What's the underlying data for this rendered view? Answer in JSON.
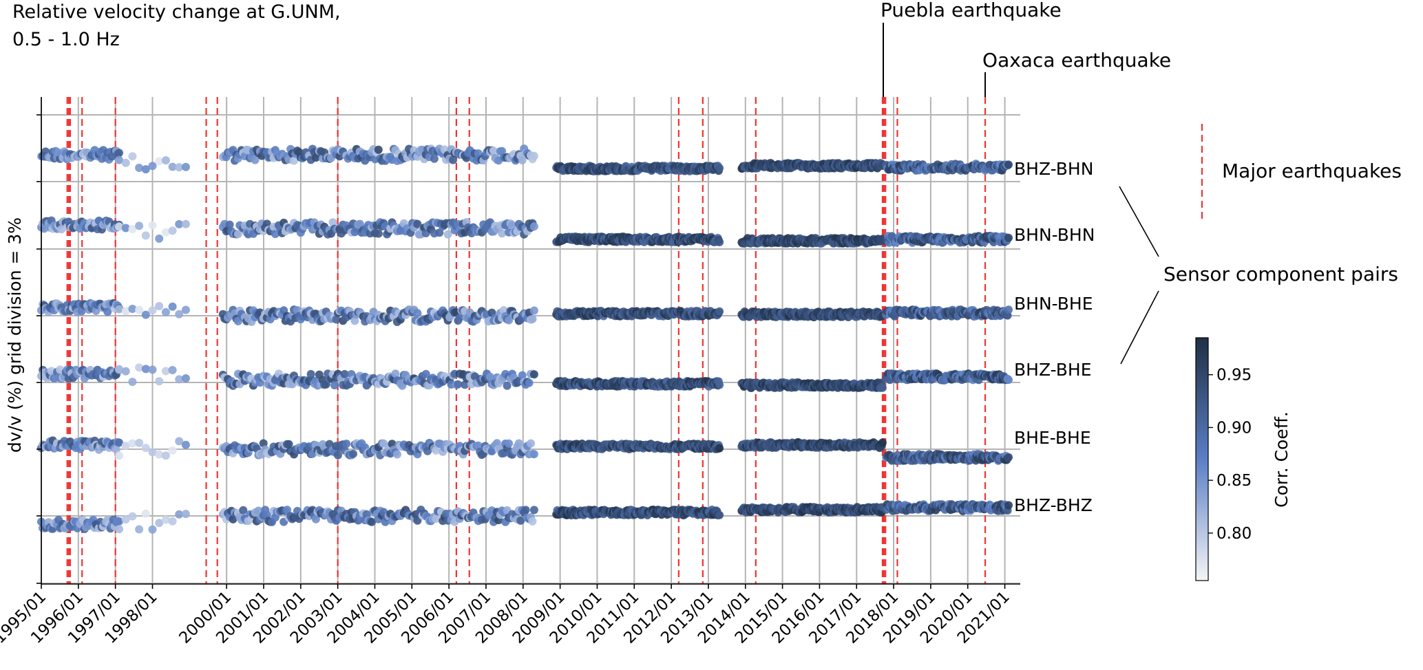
{
  "chart_data": {
    "type": "scatter",
    "title_lines": [
      "Relative velocity change at G.UNM,",
      "0.5 - 1.0 Hz"
    ],
    "ylabel": "dv/v (%) grid division = 3%",
    "x_ticks": [
      "1995/01",
      "1996/01",
      "1997/01",
      "1998/01",
      "2000/01",
      "2001/01",
      "2002/01",
      "2003/01",
      "2004/01",
      "2005/01",
      "2006/01",
      "2007/01",
      "2008/01",
      "2009/01",
      "2010/01",
      "2011/01",
      "2012/01",
      "2013/01",
      "2014/01",
      "2015/01",
      "2016/01",
      "2017/01",
      "2018/01",
      "2019/01",
      "2020/01",
      "2021/01"
    ],
    "xlim": [
      "1995/01",
      "2021/06"
    ],
    "colorbar": {
      "label": "Corr. Coeff.",
      "ticks": [
        "0.80",
        "0.85",
        "0.90",
        "0.95"
      ],
      "range": [
        0.755,
        0.985
      ],
      "cmap_low": "#f5f5f7",
      "cmap_mid": "#5b7fc4",
      "cmap_high": "#1f2f45"
    },
    "earthquake_color": "#ee3333",
    "earthquake_dates": [
      1995.7,
      1995.74,
      1995.78,
      1996.1,
      1997.0,
      1999.45,
      1999.75,
      2003.0,
      2006.2,
      2006.55,
      2012.2,
      2012.85,
      2014.28,
      2017.7,
      2017.74,
      2017.78,
      2018.1,
      2020.47
    ],
    "annotations": [
      {
        "text": "Puebla earthquake",
        "date": 2017.72
      },
      {
        "text": "Oaxaca earthquake",
        "date": 2020.47
      }
    ],
    "legend": {
      "label": "Major earthquakes",
      "position": "right"
    },
    "group_label": "Sensor component pairs",
    "series": [
      {
        "name": "BHZ-BHN"
      },
      {
        "name": "BHN-BHN"
      },
      {
        "name": "BHN-BHE"
      },
      {
        "name": "BHZ-BHE"
      },
      {
        "name": "BHE-BHE"
      },
      {
        "name": "BHZ-BHZ"
      }
    ]
  }
}
